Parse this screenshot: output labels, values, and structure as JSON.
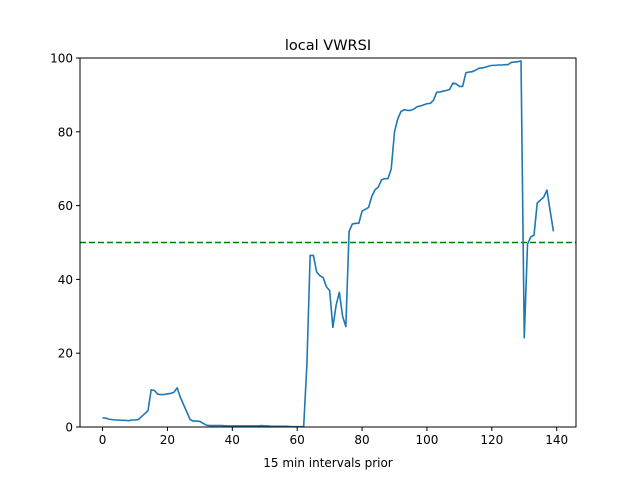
{
  "chart_data": {
    "type": "line",
    "title": "local VWRSI",
    "xlabel": "15 min intervals prior",
    "ylabel": "",
    "xlim": [
      -6.95,
      145.95
    ],
    "ylim": [
      0,
      100
    ],
    "xticks": [
      0,
      20,
      40,
      60,
      80,
      100,
      120,
      140
    ],
    "yticks": [
      0,
      20,
      40,
      60,
      80,
      100
    ],
    "grid": false,
    "series": [
      {
        "color": "#1f77b4",
        "x_start": 0,
        "values": [
          2.5,
          2.4,
          2.1,
          2.0,
          1.9,
          1.9,
          1.8,
          1.8,
          1.7,
          1.9,
          1.9,
          2.0,
          2.8,
          3.6,
          4.4,
          10.1,
          9.9,
          8.9,
          8.8,
          8.8,
          9.0,
          9.1,
          9.4,
          10.6,
          8.0,
          6.0,
          4.0,
          2.0,
          1.6,
          1.6,
          1.5,
          1.0,
          0.5,
          0.4,
          0.4,
          0.4,
          0.4,
          0.4,
          0.3,
          0.3,
          0.3,
          0.3,
          0.3,
          0.3,
          0.3,
          0.3,
          0.3,
          0.3,
          0.3,
          0.4,
          0.3,
          0.3,
          0.2,
          0.2,
          0.2,
          0.2,
          0.2,
          0.2,
          0.1,
          0.1,
          0.1,
          0.1,
          0.1,
          17,
          46.5,
          46.5,
          42,
          41,
          40.5,
          38,
          37,
          27,
          33,
          36.5,
          30,
          27.2,
          53,
          55,
          55.2,
          55.2,
          58.5,
          59,
          59.5,
          62.5,
          64.3,
          65,
          67,
          67.3,
          67.3,
          70,
          80,
          83.5,
          85.5,
          86,
          85.8,
          85.8,
          86.2,
          86.8,
          87,
          87.3,
          87.6,
          87.7,
          88.5,
          90.7,
          90.8,
          91,
          91.2,
          91.5,
          93.2,
          93.0,
          92.3,
          92.3,
          96,
          96.2,
          96.3,
          96.7,
          97.2,
          97.3,
          97.5,
          97.8,
          98,
          98,
          98.1,
          98.1,
          98.2,
          98.2,
          98.8,
          98.9,
          99,
          99.2,
          24.2,
          49.5,
          51.5,
          52,
          60.7,
          61.5,
          62.3,
          64.2,
          58.5,
          53
        ]
      }
    ],
    "reference_lines": [
      {
        "orientation": "horizontal",
        "y": 50,
        "color": "#008000",
        "style": "dashed"
      }
    ]
  }
}
